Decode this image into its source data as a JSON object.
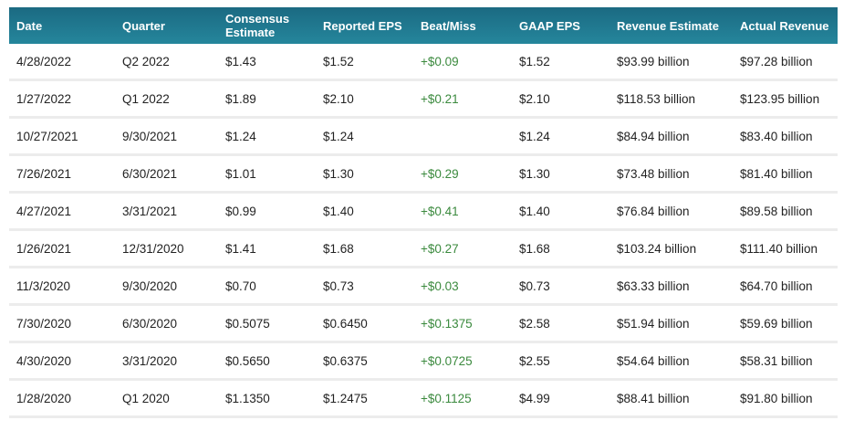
{
  "table": {
    "columns": [
      "Date",
      "Quarter",
      "Consensus Estimate",
      "Reported EPS",
      "Beat/Miss",
      "GAAP EPS",
      "Revenue Estimate",
      "Actual Revenue"
    ],
    "rows": [
      [
        "4/28/2022",
        "Q2 2022",
        "$1.43",
        "$1.52",
        "+$0.09",
        "$1.52",
        "$93.99 billion",
        "$97.28 billion"
      ],
      [
        "1/27/2022",
        "Q1 2022",
        "$1.89",
        "$2.10",
        "+$0.21",
        "$2.10",
        "$118.53 billion",
        "$123.95 billion"
      ],
      [
        "10/27/2021",
        "9/30/2021",
        "$1.24",
        "$1.24",
        null,
        "$1.24",
        "$84.94 billion",
        "$83.40 billion"
      ],
      [
        "7/26/2021",
        "6/30/2021",
        "$1.01",
        "$1.30",
        "+$0.29",
        "$1.30",
        "$73.48 billion",
        "$81.40 billion"
      ],
      [
        "4/27/2021",
        "3/31/2021",
        "$0.99",
        "$1.40",
        "+$0.41",
        "$1.40",
        "$76.84 billion",
        "$89.58 billion"
      ],
      [
        "1/26/2021",
        "12/31/2020",
        "$1.41",
        "$1.68",
        "+$0.27",
        "$1.68",
        "$103.24 billion",
        "$111.40 billion"
      ],
      [
        "11/3/2020",
        "9/30/2020",
        "$0.70",
        "$0.73",
        "+$0.03",
        "$0.73",
        "$63.33 billion",
        "$64.70 billion"
      ],
      [
        "7/30/2020",
        "6/30/2020",
        "$0.5075",
        "$0.6450",
        "+$0.1375",
        "$2.58",
        "$51.94 billion",
        "$59.69 billion"
      ],
      [
        "4/30/2020",
        "3/31/2020",
        "$0.5650",
        "$0.6375",
        "+$0.0725",
        "$2.55",
        "$54.64 billion",
        "$58.31 billion"
      ],
      [
        "1/28/2020",
        "Q1 2020",
        "$1.1350",
        "$1.2475",
        "+$0.1125",
        "$4.99",
        "$88.41 billion",
        "$91.80 billion"
      ]
    ]
  }
}
